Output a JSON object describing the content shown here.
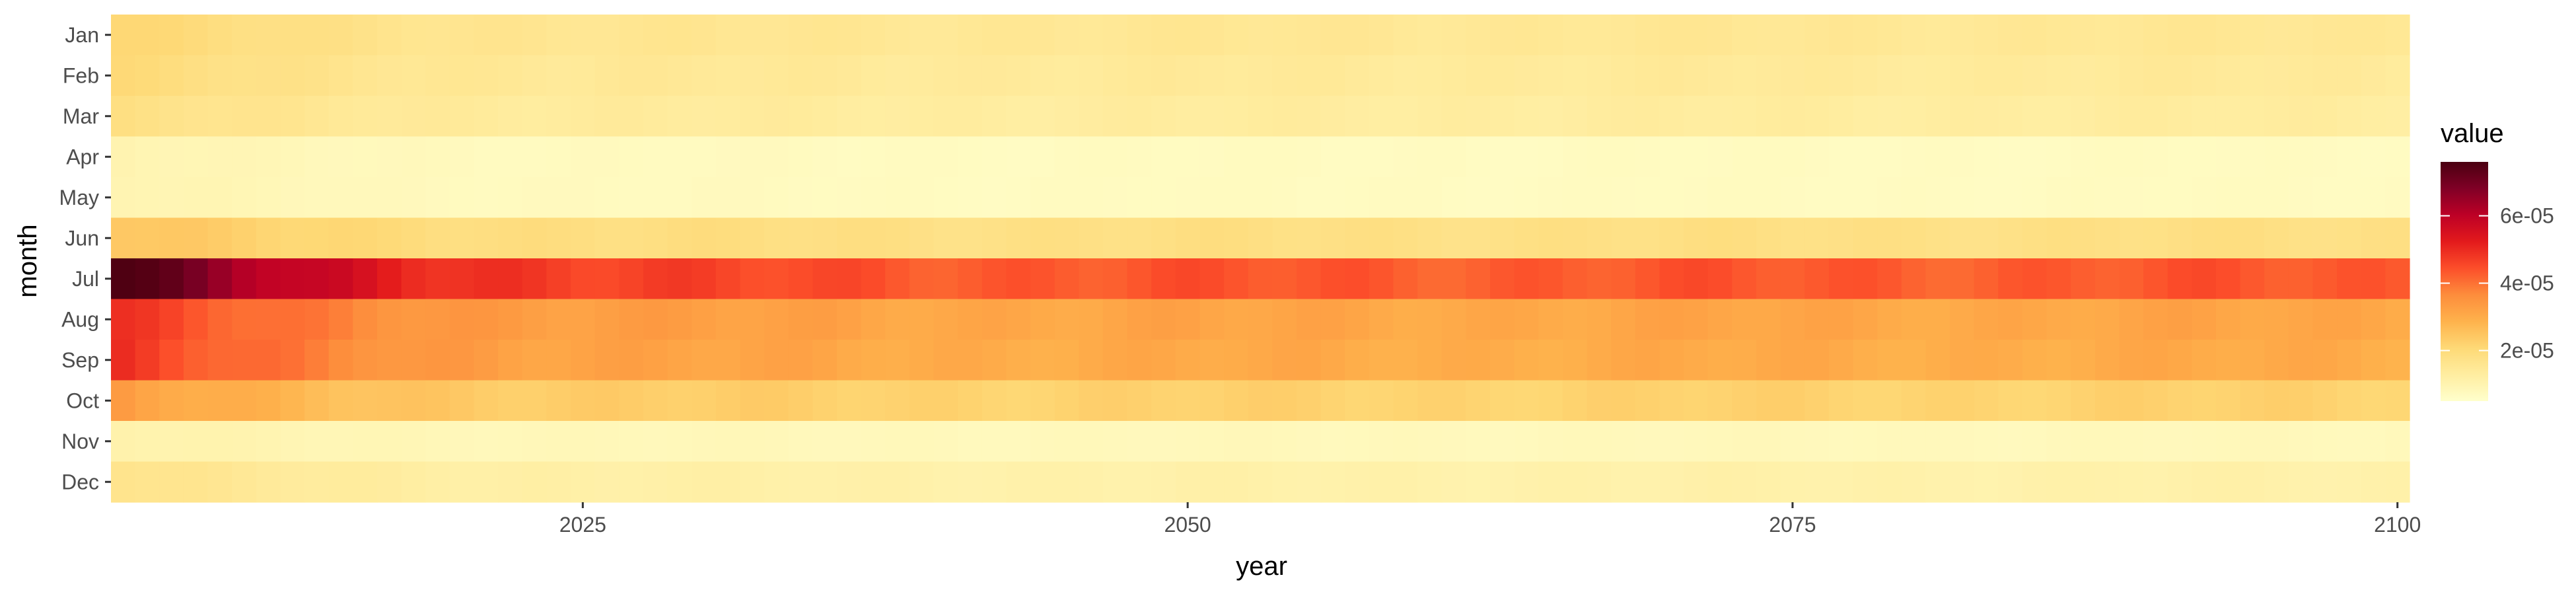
{
  "chart_data": {
    "type": "heatmap",
    "title": "",
    "xlabel": "year",
    "ylabel": "month",
    "x": {
      "start": 2006,
      "end": 2100,
      "ticks": [
        2025,
        2050,
        2075,
        2100
      ]
    },
    "y": {
      "categories": [
        "Jan",
        "Feb",
        "Mar",
        "Apr",
        "May",
        "Jun",
        "Jul",
        "Aug",
        "Sep",
        "Oct",
        "Nov",
        "Dec"
      ]
    },
    "legend": {
      "title": "value",
      "placement": "right",
      "range": [
        5e-06,
        7.6e-05
      ],
      "ticks": [
        {
          "value": 2e-05,
          "label": "2e-05"
        },
        {
          "value": 4e-05,
          "label": "4e-05"
        },
        {
          "value": 6e-05,
          "label": "6e-05"
        }
      ],
      "palette": [
        "#ffffcc",
        "#ffeda0",
        "#fed976",
        "#feb24c",
        "#fd8d3c",
        "#fc4e2a",
        "#e31a1c",
        "#bd0026",
        "#800026",
        "#4a0010"
      ]
    },
    "monthly_profile": [
      {
        "month": "Jan",
        "start": 2.1e-05,
        "end": 1.5e-05
      },
      {
        "month": "Feb",
        "start": 2e-05,
        "end": 1.4e-05
      },
      {
        "month": "Mar",
        "start": 1.8e-05,
        "end": 1.3e-05
      },
      {
        "month": "Apr",
        "start": 1e-05,
        "end": 7e-06
      },
      {
        "month": "May",
        "start": 1e-05,
        "end": 7e-06
      },
      {
        "month": "Jun",
        "start": 2.5e-05,
        "end": 1.8e-05
      },
      {
        "month": "Jul",
        "start": 7.6e-05,
        "end": 4.3e-05
      },
      {
        "month": "Aug",
        "start": 4.8e-05,
        "end": 3.1e-05
      },
      {
        "month": "Sep",
        "start": 4.8e-05,
        "end": 3e-05
      },
      {
        "month": "Oct",
        "start": 3.3e-05,
        "end": 2.2e-05
      },
      {
        "month": "Nov",
        "start": 1.1e-05,
        "end": 8e-06
      },
      {
        "month": "Dec",
        "start": 1.7e-05,
        "end": 1.1e-05
      }
    ]
  }
}
